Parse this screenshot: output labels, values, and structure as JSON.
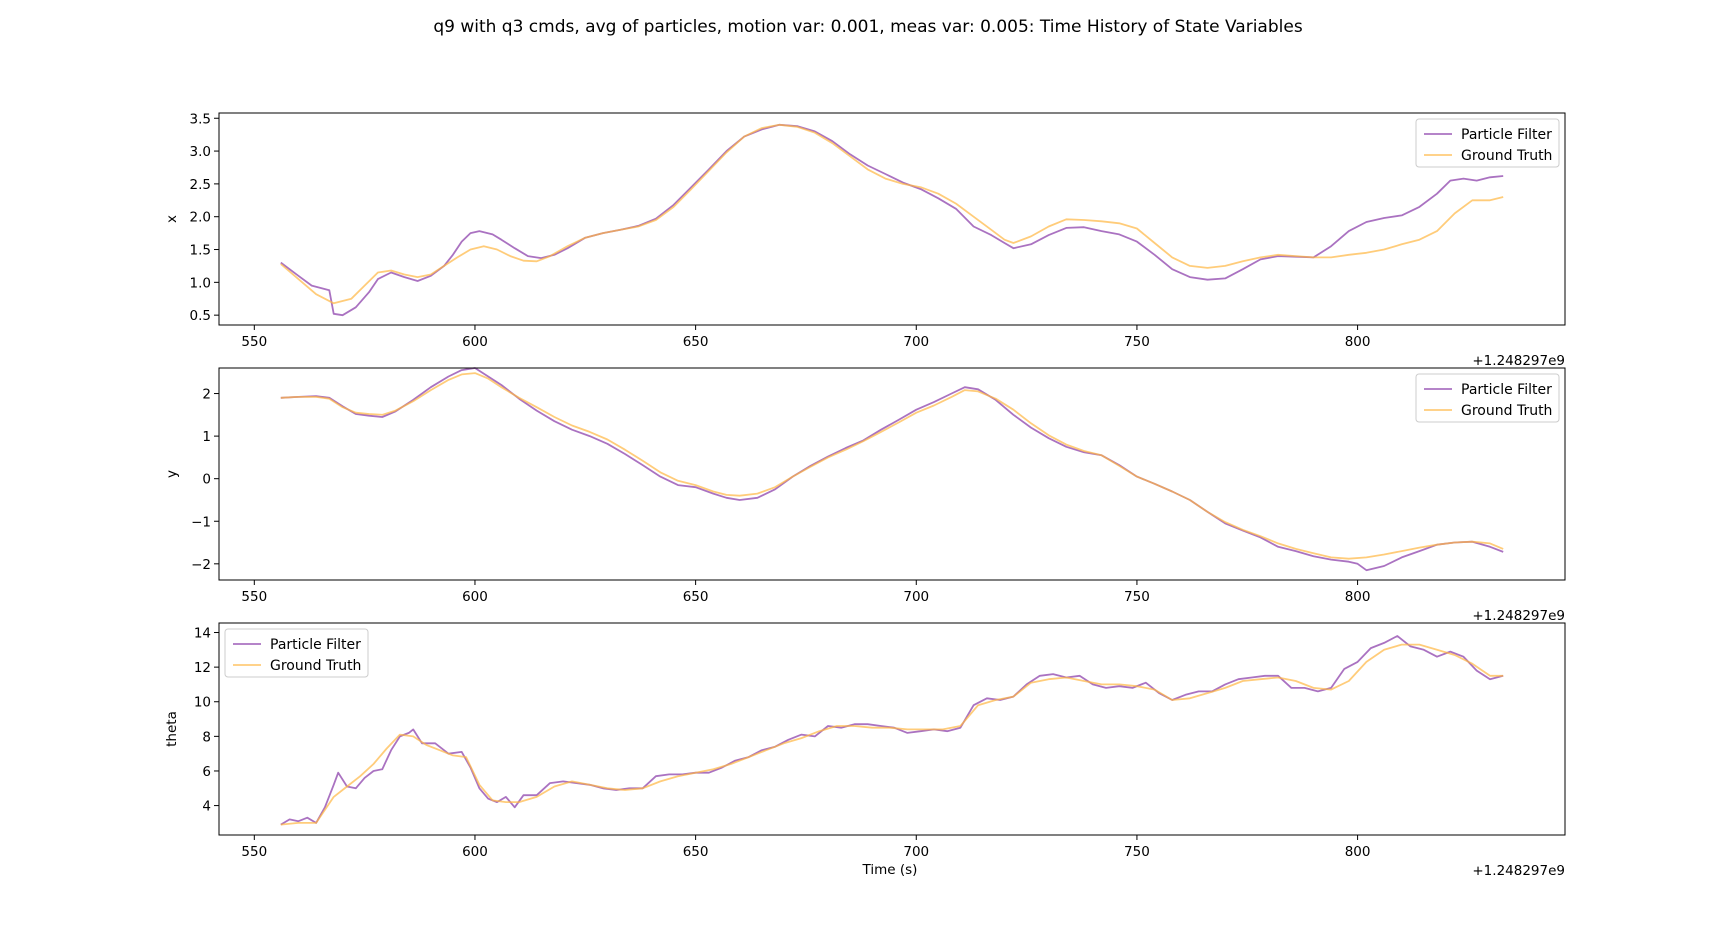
{
  "figure": {
    "title": "q9 with q3 cmds, avg of particles, motion var: 0.001, meas var: 0.005: Time History of State Variables",
    "xlabel": "Time (s)",
    "x_offset_label": "+1.248297e9",
    "colors": {
      "particle_filter": "#9b59b6",
      "ground_truth": "#ffb642",
      "overlap": "#e07b55"
    }
  },
  "chart_data": [
    {
      "type": "line",
      "ylabel": "x",
      "xlim": [
        542,
        847
      ],
      "ylim": [
        0.35,
        3.58
      ],
      "xticks": [
        550,
        600,
        650,
        700,
        750,
        800
      ],
      "yticks": [
        "0.5",
        "1.0",
        "1.5",
        "2.0",
        "2.5",
        "3.0",
        "3.5"
      ],
      "legend": "upper right",
      "series": [
        {
          "name": "Particle Filter",
          "color": "#9b59b6",
          "x": [
            556,
            560,
            563,
            567,
            568,
            570,
            573,
            576,
            578,
            581,
            584,
            587,
            590,
            593,
            595,
            597,
            599,
            601,
            604,
            606,
            609,
            612,
            615,
            618,
            621,
            625,
            629,
            633,
            637,
            641,
            645,
            649,
            653,
            657,
            661,
            665,
            669,
            673,
            677,
            681,
            685,
            689,
            693,
            697,
            701,
            705,
            709,
            713,
            717,
            720,
            722,
            726,
            730,
            734,
            738,
            742,
            746,
            750,
            754,
            758,
            762,
            766,
            770,
            774,
            778,
            782,
            786,
            790,
            794,
            798,
            802,
            806,
            810,
            814,
            818,
            821,
            824,
            827,
            830,
            833
          ],
          "y": [
            1.3,
            1.1,
            0.95,
            0.88,
            0.52,
            0.5,
            0.62,
            0.85,
            1.05,
            1.15,
            1.08,
            1.02,
            1.1,
            1.25,
            1.42,
            1.62,
            1.75,
            1.78,
            1.73,
            1.65,
            1.52,
            1.4,
            1.37,
            1.42,
            1.52,
            1.68,
            1.75,
            1.8,
            1.86,
            1.97,
            2.18,
            2.45,
            2.72,
            3.0,
            3.22,
            3.33,
            3.4,
            3.38,
            3.3,
            3.15,
            2.95,
            2.78,
            2.65,
            2.52,
            2.42,
            2.28,
            2.12,
            1.85,
            1.72,
            1.6,
            1.52,
            1.58,
            1.72,
            1.83,
            1.84,
            1.78,
            1.73,
            1.62,
            1.42,
            1.2,
            1.08,
            1.04,
            1.06,
            1.2,
            1.35,
            1.4,
            1.39,
            1.38,
            1.55,
            1.78,
            1.92,
            1.98,
            2.02,
            2.15,
            2.35,
            2.55,
            2.58,
            2.55,
            2.6,
            2.62
          ]
        },
        {
          "name": "Ground Truth",
          "color": "#ffb642",
          "x": [
            556,
            560,
            564,
            568,
            572,
            575,
            578,
            581,
            584,
            587,
            590,
            593,
            596,
            599,
            602,
            605,
            608,
            611,
            614,
            617,
            621,
            625,
            629,
            633,
            637,
            641,
            645,
            649,
            653,
            657,
            661,
            665,
            669,
            673,
            677,
            681,
            685,
            689,
            693,
            697,
            701,
            705,
            709,
            713,
            717,
            720,
            722,
            726,
            730,
            734,
            738,
            742,
            746,
            750,
            754,
            758,
            762,
            766,
            770,
            774,
            778,
            782,
            786,
            790,
            794,
            798,
            802,
            806,
            810,
            814,
            818,
            822,
            826,
            830,
            833
          ],
          "y": [
            1.28,
            1.05,
            0.82,
            0.68,
            0.75,
            0.95,
            1.15,
            1.18,
            1.12,
            1.08,
            1.12,
            1.25,
            1.38,
            1.5,
            1.55,
            1.5,
            1.4,
            1.33,
            1.32,
            1.4,
            1.55,
            1.68,
            1.75,
            1.8,
            1.85,
            1.95,
            2.15,
            2.42,
            2.7,
            2.98,
            3.22,
            3.35,
            3.4,
            3.37,
            3.28,
            3.12,
            2.92,
            2.72,
            2.58,
            2.5,
            2.45,
            2.35,
            2.2,
            2.0,
            1.8,
            1.65,
            1.6,
            1.7,
            1.85,
            1.96,
            1.95,
            1.93,
            1.9,
            1.82,
            1.6,
            1.38,
            1.25,
            1.22,
            1.25,
            1.32,
            1.38,
            1.42,
            1.4,
            1.38,
            1.38,
            1.42,
            1.45,
            1.5,
            1.58,
            1.65,
            1.78,
            2.05,
            2.25,
            2.25,
            2.3
          ]
        }
      ]
    },
    {
      "type": "line",
      "ylabel": "y",
      "xlim": [
        542,
        847
      ],
      "ylim": [
        -2.38,
        2.6
      ],
      "xticks": [
        550,
        600,
        650,
        700,
        750,
        800
      ],
      "yticks": [
        "−2",
        "−1",
        "0",
        "1",
        "2"
      ],
      "legend": "upper right",
      "series": [
        {
          "name": "Particle Filter",
          "color": "#9b59b6",
          "x": [
            556,
            560,
            564,
            567,
            570,
            573,
            576,
            579,
            582,
            586,
            590,
            594,
            597,
            600,
            603,
            606,
            610,
            614,
            618,
            622,
            626,
            630,
            634,
            638,
            642,
            646,
            650,
            654,
            657,
            660,
            664,
            668,
            672,
            676,
            680,
            684,
            688,
            692,
            696,
            700,
            704,
            708,
            711,
            714,
            718,
            722,
            726,
            730,
            734,
            738,
            742,
            746,
            750,
            754,
            758,
            762,
            766,
            770,
            774,
            778,
            782,
            786,
            790,
            794,
            798,
            800,
            802,
            806,
            810,
            814,
            818,
            822,
            826,
            830,
            833
          ],
          "y": [
            1.9,
            1.92,
            1.94,
            1.9,
            1.7,
            1.52,
            1.48,
            1.45,
            1.58,
            1.85,
            2.15,
            2.4,
            2.55,
            2.6,
            2.4,
            2.2,
            1.88,
            1.6,
            1.35,
            1.15,
            1.0,
            0.82,
            0.58,
            0.32,
            0.05,
            -0.15,
            -0.2,
            -0.35,
            -0.45,
            -0.5,
            -0.45,
            -0.25,
            0.05,
            0.3,
            0.52,
            0.72,
            0.9,
            1.15,
            1.38,
            1.62,
            1.8,
            2.0,
            2.15,
            2.1,
            1.85,
            1.5,
            1.2,
            0.95,
            0.75,
            0.62,
            0.55,
            0.32,
            0.05,
            -0.12,
            -0.3,
            -0.5,
            -0.78,
            -1.05,
            -1.22,
            -1.38,
            -1.6,
            -1.7,
            -1.82,
            -1.9,
            -1.95,
            -2.0,
            -2.15,
            -2.05,
            -1.85,
            -1.7,
            -1.55,
            -1.5,
            -1.48,
            -1.6,
            -1.72
          ]
        },
        {
          "name": "Ground Truth",
          "color": "#ffb642",
          "x": [
            556,
            560,
            564,
            567,
            570,
            573,
            576,
            579,
            582,
            586,
            590,
            594,
            597,
            600,
            603,
            606,
            610,
            614,
            618,
            622,
            626,
            630,
            634,
            638,
            642,
            646,
            650,
            654,
            657,
            660,
            664,
            668,
            672,
            676,
            680,
            684,
            688,
            692,
            696,
            700,
            704,
            708,
            711,
            714,
            718,
            722,
            726,
            730,
            734,
            738,
            742,
            746,
            750,
            754,
            758,
            762,
            766,
            770,
            774,
            778,
            782,
            786,
            790,
            794,
            798,
            802,
            806,
            810,
            814,
            818,
            822,
            826,
            830,
            833
          ],
          "y": [
            1.9,
            1.92,
            1.92,
            1.88,
            1.68,
            1.55,
            1.52,
            1.5,
            1.6,
            1.82,
            2.08,
            2.32,
            2.45,
            2.48,
            2.35,
            2.15,
            1.9,
            1.68,
            1.45,
            1.25,
            1.1,
            0.92,
            0.68,
            0.42,
            0.15,
            -0.05,
            -0.15,
            -0.3,
            -0.38,
            -0.4,
            -0.35,
            -0.2,
            0.05,
            0.28,
            0.5,
            0.68,
            0.88,
            1.1,
            1.32,
            1.55,
            1.72,
            1.92,
            2.08,
            2.05,
            1.88,
            1.62,
            1.3,
            1.02,
            0.8,
            0.65,
            0.55,
            0.3,
            0.05,
            -0.12,
            -0.3,
            -0.5,
            -0.78,
            -1.02,
            -1.2,
            -1.35,
            -1.52,
            -1.65,
            -1.75,
            -1.85,
            -1.88,
            -1.85,
            -1.78,
            -1.7,
            -1.62,
            -1.55,
            -1.5,
            -1.48,
            -1.52,
            -1.65
          ]
        }
      ]
    },
    {
      "type": "line",
      "ylabel": "theta",
      "xlim": [
        542,
        847
      ],
      "ylim": [
        2.3,
        14.55
      ],
      "xticks": [
        550,
        600,
        650,
        700,
        750,
        800
      ],
      "yticks": [
        "4",
        "6",
        "8",
        "10",
        "12",
        "14"
      ],
      "legend": "upper left",
      "series": [
        {
          "name": "Particle Filter",
          "color": "#9b59b6",
          "x": [
            556,
            558,
            560,
            562,
            564,
            566,
            568,
            569,
            571,
            573,
            575,
            577,
            579,
            581,
            583,
            585,
            586,
            588,
            591,
            594,
            597,
            599,
            601,
            603,
            605,
            607,
            609,
            611,
            614,
            617,
            620,
            623,
            626,
            629,
            632,
            635,
            638,
            641,
            644,
            647,
            650,
            653,
            656,
            659,
            662,
            665,
            668,
            671,
            674,
            677,
            680,
            683,
            686,
            689,
            692,
            695,
            698,
            701,
            704,
            707,
            710,
            713,
            716,
            719,
            722,
            725,
            728,
            731,
            734,
            737,
            740,
            743,
            746,
            749,
            752,
            755,
            758,
            761,
            764,
            767,
            770,
            773,
            776,
            779,
            782,
            785,
            788,
            791,
            794,
            797,
            800,
            803,
            806,
            809,
            812,
            815,
            818,
            821,
            824,
            827,
            830,
            833
          ],
          "y": [
            2.9,
            3.2,
            3.1,
            3.3,
            3.0,
            3.9,
            5.2,
            5.9,
            5.1,
            5.0,
            5.6,
            6.0,
            6.1,
            7.2,
            8.0,
            8.2,
            8.4,
            7.6,
            7.6,
            7.0,
            7.1,
            6.2,
            5.0,
            4.4,
            4.2,
            4.5,
            3.9,
            4.6,
            4.6,
            5.3,
            5.4,
            5.3,
            5.2,
            5.0,
            4.9,
            5.0,
            5.0,
            5.7,
            5.8,
            5.8,
            5.9,
            5.9,
            6.2,
            6.6,
            6.8,
            7.2,
            7.4,
            7.8,
            8.1,
            8.0,
            8.6,
            8.5,
            8.7,
            8.7,
            8.6,
            8.5,
            8.2,
            8.3,
            8.4,
            8.3,
            8.5,
            9.8,
            10.2,
            10.1,
            10.3,
            11.0,
            11.5,
            11.6,
            11.4,
            11.5,
            11.0,
            10.8,
            10.9,
            10.8,
            11.1,
            10.5,
            10.1,
            10.4,
            10.6,
            10.6,
            11.0,
            11.3,
            11.4,
            11.5,
            11.5,
            10.8,
            10.8,
            10.6,
            10.8,
            11.9,
            12.3,
            13.1,
            13.4,
            13.8,
            13.2,
            13.0,
            12.6,
            12.9,
            12.6,
            11.8,
            11.3,
            11.5
          ]
        },
        {
          "name": "Ground Truth",
          "color": "#ffb642",
          "x": [
            556,
            560,
            564,
            568,
            571,
            574,
            577,
            580,
            583,
            586,
            589,
            592,
            595,
            598,
            601,
            604,
            607,
            610,
            614,
            618,
            622,
            626,
            630,
            634,
            638,
            642,
            646,
            650,
            654,
            658,
            662,
            666,
            670,
            674,
            678,
            682,
            686,
            690,
            694,
            698,
            702,
            706,
            710,
            714,
            718,
            722,
            726,
            730,
            734,
            738,
            742,
            746,
            750,
            754,
            758,
            762,
            766,
            770,
            774,
            778,
            782,
            786,
            790,
            794,
            798,
            802,
            806,
            810,
            814,
            818,
            822,
            826,
            830,
            833
          ],
          "y": [
            2.9,
            3.0,
            3.0,
            4.5,
            5.1,
            5.7,
            6.4,
            7.3,
            8.1,
            8.0,
            7.5,
            7.2,
            6.9,
            6.8,
            5.2,
            4.3,
            4.2,
            4.2,
            4.5,
            5.1,
            5.4,
            5.2,
            5.0,
            4.9,
            5.0,
            5.4,
            5.7,
            5.9,
            6.1,
            6.4,
            6.8,
            7.2,
            7.6,
            7.9,
            8.3,
            8.6,
            8.6,
            8.5,
            8.5,
            8.4,
            8.4,
            8.4,
            8.6,
            9.8,
            10.1,
            10.3,
            11.1,
            11.3,
            11.4,
            11.2,
            11.0,
            11.0,
            10.9,
            10.7,
            10.1,
            10.2,
            10.5,
            10.8,
            11.2,
            11.3,
            11.4,
            11.2,
            10.8,
            10.7,
            11.2,
            12.3,
            13.0,
            13.3,
            13.3,
            13.0,
            12.7,
            12.2,
            11.5,
            11.5
          ]
        }
      ]
    }
  ]
}
